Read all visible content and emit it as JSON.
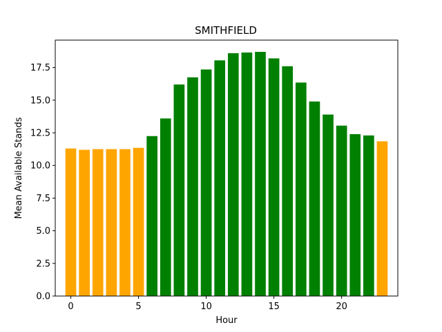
{
  "chart_data": {
    "type": "bar",
    "title": "SMITHFIELD",
    "xlabel": "Hour",
    "ylabel": "Mean Available Stands",
    "x": [
      0,
      1,
      2,
      3,
      4,
      5,
      6,
      7,
      8,
      9,
      10,
      11,
      12,
      13,
      14,
      15,
      16,
      17,
      18,
      19,
      20,
      21,
      22,
      23
    ],
    "values": [
      11.3,
      11.2,
      11.25,
      11.25,
      11.25,
      11.35,
      12.25,
      13.6,
      16.2,
      16.75,
      17.35,
      18.05,
      18.6,
      18.65,
      18.7,
      18.2,
      17.6,
      16.35,
      14.9,
      13.9,
      13.05,
      12.4,
      12.3,
      11.85
    ],
    "bar_colors": [
      "#ffa500",
      "#ffa500",
      "#ffa500",
      "#ffa500",
      "#ffa500",
      "#ffa500",
      "#008000",
      "#008000",
      "#008000",
      "#008000",
      "#008000",
      "#008000",
      "#008000",
      "#008000",
      "#008000",
      "#008000",
      "#008000",
      "#008000",
      "#008000",
      "#008000",
      "#008000",
      "#008000",
      "#008000",
      "#ffa500"
    ],
    "xlim": [
      -1.15,
      24.15
    ],
    "ylim": [
      0,
      19.6
    ],
    "xticks": [
      0,
      5,
      10,
      15,
      20
    ],
    "xtick_labels": [
      "0",
      "5",
      "10",
      "15",
      "20"
    ],
    "yticks": [
      0,
      2.5,
      5,
      7.5,
      10,
      12.5,
      15,
      17.5
    ],
    "ytick_labels": [
      "0.0",
      "2.5",
      "5.0",
      "7.5",
      "10.0",
      "12.5",
      "15.0",
      "17.5"
    ],
    "grid": false,
    "legend": "none"
  }
}
